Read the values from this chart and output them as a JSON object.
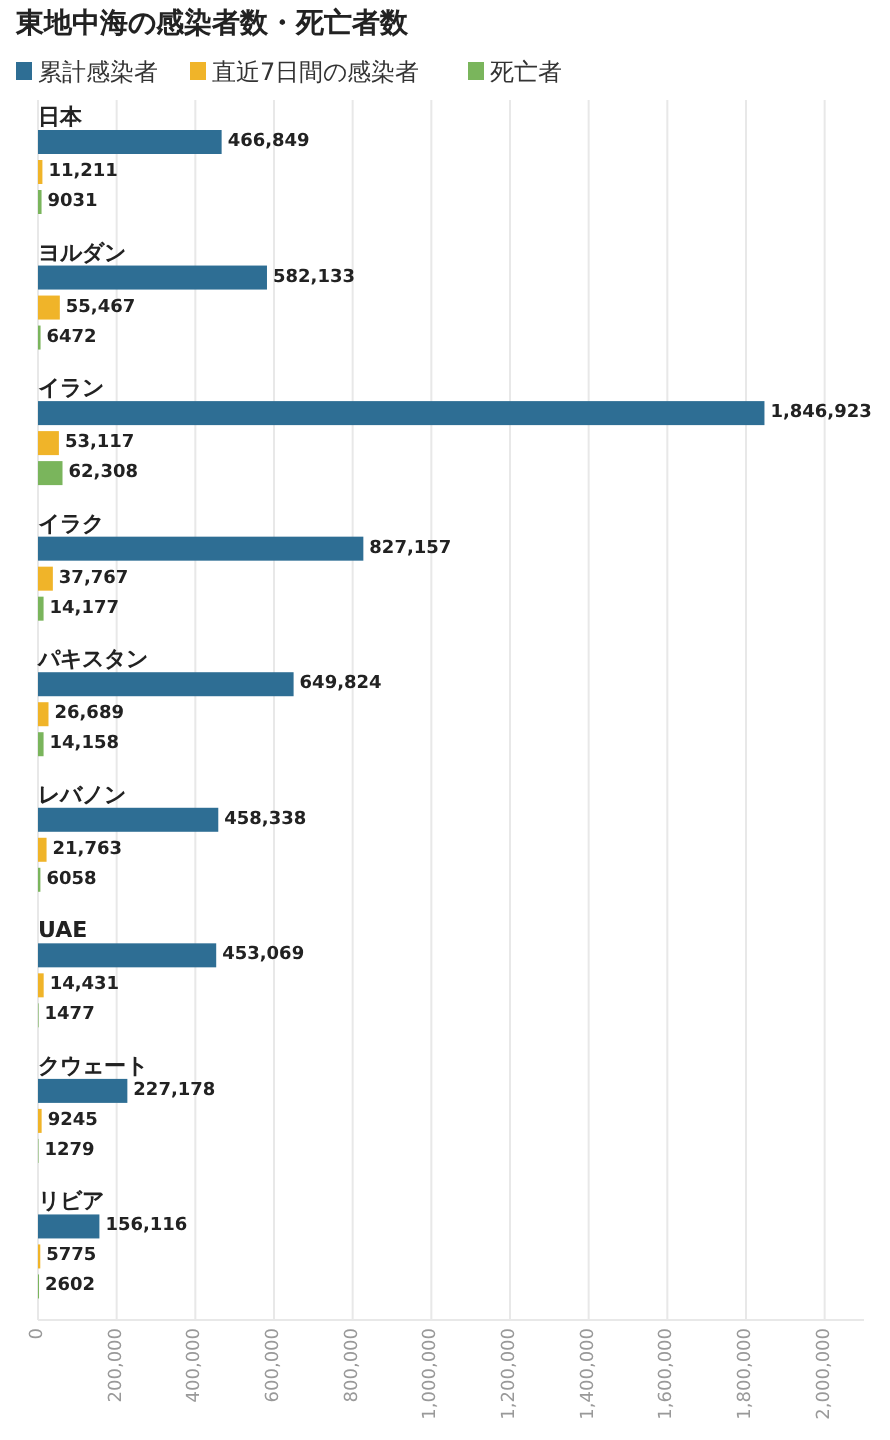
{
  "chart_data": {
    "type": "bar",
    "orientation": "horizontal",
    "title": "東地中海の感染者数・死亡者数",
    "categories": [
      "日本",
      "ヨルダン",
      "イラン",
      "イラク",
      "パキスタン",
      "レバノン",
      "UAE",
      "クウェート",
      "リビア"
    ],
    "series": [
      {
        "name": "累計感染者",
        "color": "#2e6e94",
        "values": [
          466849,
          582133,
          1846923,
          827157,
          649824,
          458338,
          453069,
          227178,
          156116
        ],
        "value_labels": [
          "466,849",
          "582,133",
          "1,846,923",
          "827,157",
          "649,824",
          "458,338",
          "453,069",
          "227,178",
          "156,116"
        ]
      },
      {
        "name": "直近7日間の感染者",
        "color": "#f0b429",
        "values": [
          11211,
          55467,
          53117,
          37767,
          26689,
          21763,
          14431,
          9245,
          5775
        ],
        "value_labels": [
          "11,211",
          "55,467",
          "53,117",
          "37,767",
          "26,689",
          "21,763",
          "14,431",
          "9245",
          "5775"
        ]
      },
      {
        "name": "死亡者",
        "color": "#7ab55c",
        "values": [
          9031,
          6472,
          62308,
          14177,
          14158,
          6058,
          1477,
          1279,
          2602
        ],
        "value_labels": [
          "9031",
          "6472",
          "62,308",
          "14,177",
          "14,158",
          "6058",
          "1477",
          "1279",
          "2602"
        ]
      }
    ],
    "xlim": [
      0,
      2100000
    ],
    "xticks": [
      0,
      {
        "value": 200000,
        "label": "200,000"
      },
      {
        "value": 400000,
        "label": "400,000"
      },
      {
        "value": 600000,
        "label": "600,000"
      },
      {
        "value": 800000,
        "label": "800,000"
      },
      {
        "value": 1000000,
        "label": "1,000,000"
      },
      {
        "value": 1200000,
        "label": "1,200,000"
      },
      {
        "value": 1400000,
        "label": "1,400,000"
      },
      {
        "value": 1600000,
        "label": "1,600,000"
      },
      {
        "value": 1800000,
        "label": "1,800,000"
      },
      {
        "value": 2000000,
        "label": "2,000,000"
      }
    ],
    "grid": "x",
    "legend": "top left"
  }
}
